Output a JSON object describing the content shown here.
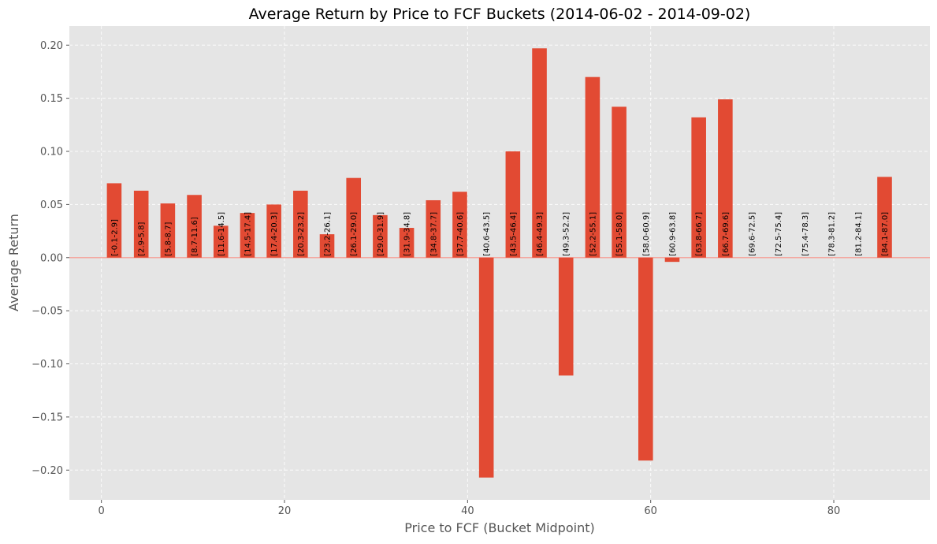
{
  "chart_data": {
    "type": "bar",
    "title": "Average Return by Price to FCF Buckets (2014-06-02 - 2014-09-02)",
    "xlabel": "Price to FCF (Bucket Midpoint)",
    "ylabel": "Average Return",
    "xlim": [
      -3.5,
      90.5
    ],
    "ylim": [
      -0.228,
      0.218
    ],
    "xticks": [
      0,
      20,
      40,
      60,
      80
    ],
    "yticks": [
      -0.2,
      -0.15,
      -0.1,
      -0.05,
      0.0,
      0.05,
      0.1,
      0.15,
      0.2
    ],
    "xtick_labels": [
      "0",
      "20",
      "40",
      "60",
      "80"
    ],
    "ytick_labels": [
      "−0.20",
      "−0.15",
      "−0.10",
      "−0.05",
      "0.00",
      "0.05",
      "0.10",
      "0.15",
      "0.20"
    ],
    "grid": true,
    "bar_width_units": 1.6,
    "colors": {
      "bar": "#E24A33",
      "plot_background": "#E5E5E5",
      "zero_line": "#F4A8A0",
      "grid": "#FFFFFF"
    },
    "bars": [
      {
        "x": 1.4,
        "value": 0.07,
        "label": "[-0.1-2.9]"
      },
      {
        "x": 4.35,
        "value": 0.063,
        "label": "[2.9-5.8]"
      },
      {
        "x": 7.25,
        "value": 0.051,
        "label": "[5.8-8.7]"
      },
      {
        "x": 10.15,
        "value": 0.059,
        "label": "[8.7-11.6]"
      },
      {
        "x": 13.05,
        "value": 0.03,
        "label": "[11.6-14.5]"
      },
      {
        "x": 15.95,
        "value": 0.042,
        "label": "[14.5-17.4]"
      },
      {
        "x": 18.85,
        "value": 0.05,
        "label": "[17.4-20.3]"
      },
      {
        "x": 21.75,
        "value": 0.063,
        "label": "[20.3-23.2]"
      },
      {
        "x": 24.65,
        "value": 0.022,
        "label": "[23.2-26.1]"
      },
      {
        "x": 27.55,
        "value": 0.075,
        "label": "[26.1-29.0]"
      },
      {
        "x": 30.45,
        "value": 0.04,
        "label": "[29.0-31.9]"
      },
      {
        "x": 33.35,
        "value": 0.028,
        "label": "[31.9-34.8]"
      },
      {
        "x": 36.25,
        "value": 0.054,
        "label": "[34.8-37.7]"
      },
      {
        "x": 39.15,
        "value": 0.062,
        "label": "[37.7-40.6]"
      },
      {
        "x": 42.05,
        "value": -0.207,
        "label": "[40.6-43.5]"
      },
      {
        "x": 44.95,
        "value": 0.1,
        "label": "[43.5-46.4]"
      },
      {
        "x": 47.85,
        "value": 0.197,
        "label": "[46.4-49.3]"
      },
      {
        "x": 50.75,
        "value": -0.111,
        "label": "[49.3-52.2]"
      },
      {
        "x": 53.65,
        "value": 0.17,
        "label": "[52.2-55.1]"
      },
      {
        "x": 56.55,
        "value": 0.142,
        "label": "[55.1-58.0]"
      },
      {
        "x": 59.45,
        "value": -0.191,
        "label": "[58.0-60.9]"
      },
      {
        "x": 62.35,
        "value": -0.004,
        "label": "[60.9-63.8]"
      },
      {
        "x": 65.25,
        "value": 0.132,
        "label": "[63.8-66.7]"
      },
      {
        "x": 68.15,
        "value": 0.149,
        "label": "[66.7-69.6]"
      },
      {
        "x": 71.05,
        "value": 0.0,
        "label": "[69.6-72.5]"
      },
      {
        "x": 73.95,
        "value": 0.0,
        "label": "[72.5-75.4]"
      },
      {
        "x": 76.85,
        "value": 0.0,
        "label": "[75.4-78.3]"
      },
      {
        "x": 79.75,
        "value": 0.0,
        "label": "[78.3-81.2]"
      },
      {
        "x": 82.65,
        "value": 0.0,
        "label": "[81.2-84.1]"
      },
      {
        "x": 85.55,
        "value": 0.076,
        "label": "[84.1-87.0]"
      }
    ]
  }
}
